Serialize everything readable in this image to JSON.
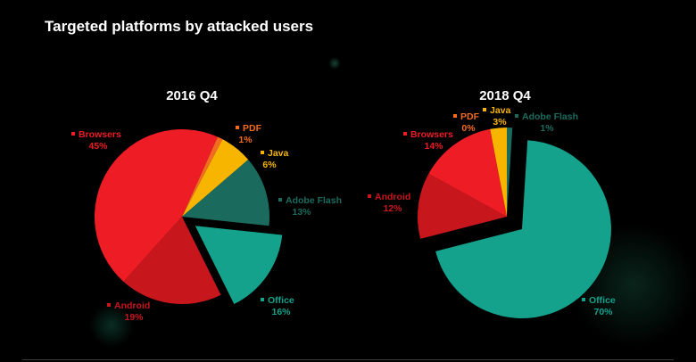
{
  "page_title": "Targeted platforms by attacked users",
  "chart_data": [
    {
      "type": "pie",
      "title": "2016 Q4",
      "categories": [
        "PDF",
        "Java",
        "Adobe Flash",
        "Office",
        "Android",
        "Browsers"
      ],
      "values": [
        1,
        6,
        13,
        16,
        19,
        45
      ],
      "labels": [
        "1%",
        "6%",
        "13%",
        "16%",
        "19%",
        "45%"
      ],
      "exploded": "Office",
      "colors": [
        "#f26b21",
        "#f7b500",
        "#1a6b5e",
        "#14a28c",
        "#c8161d",
        "#ee1c24"
      ]
    },
    {
      "type": "pie",
      "title": "2018 Q4",
      "categories": [
        "Adobe Flash",
        "Office",
        "Android",
        "Browsers",
        "PDF",
        "Java"
      ],
      "values": [
        1,
        70,
        12,
        14,
        0,
        3
      ],
      "labels": [
        "1%",
        "70%",
        "12%",
        "14%",
        "0%",
        "3%"
      ],
      "exploded": "Office",
      "colors": [
        "#1a6b5e",
        "#14a28c",
        "#c8161d",
        "#ee1c24",
        "#f26b21",
        "#f7b500"
      ]
    }
  ]
}
